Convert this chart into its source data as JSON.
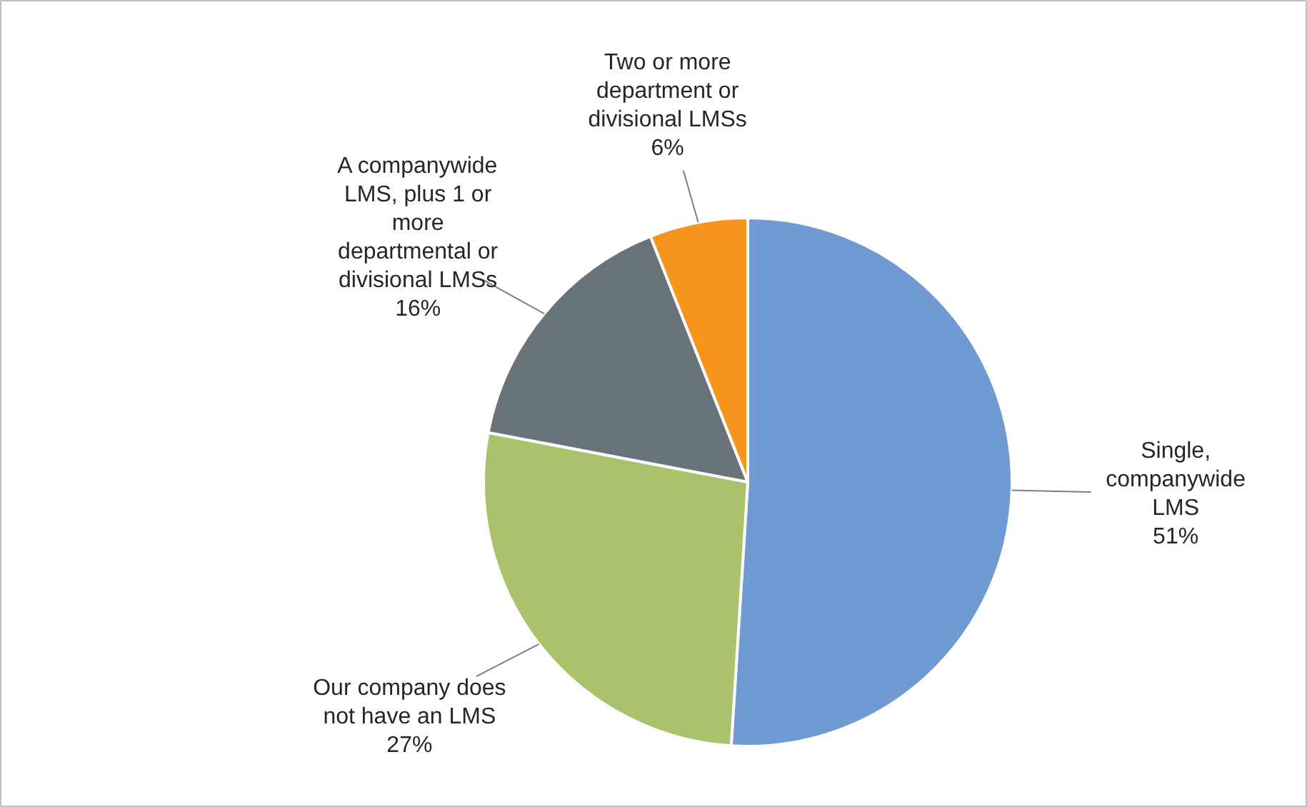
{
  "chart_data": {
    "type": "pie",
    "categories": [
      "Single, companywide LMS",
      "Our company does not have an LMS",
      "A companywide LMS, plus 1 or more departmental or divisional LMSs",
      "Two or more department or divisional LMSs"
    ],
    "values": [
      51,
      27,
      16,
      6
    ],
    "colors": [
      "#6f9bd2",
      "#a9c26b",
      "#69737a",
      "#f7941d"
    ],
    "value_labels": [
      "51%",
      "27%",
      "16%",
      "6%"
    ]
  }
}
